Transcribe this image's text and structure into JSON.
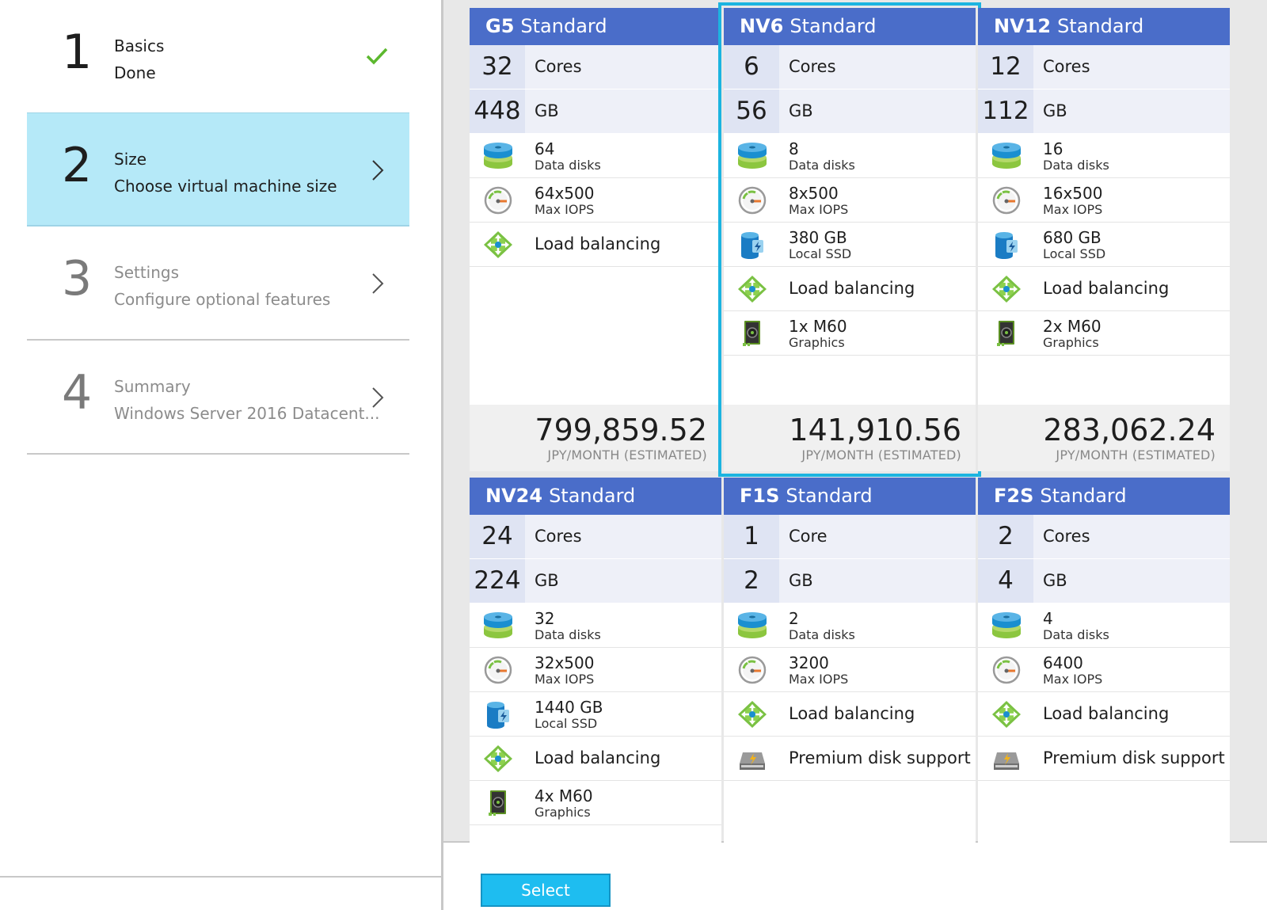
{
  "steps": [
    {
      "num": "1",
      "title": "Basics",
      "sub": "Done",
      "state": "done"
    },
    {
      "num": "2",
      "title": "Size",
      "sub": "Choose virtual machine size",
      "state": "active"
    },
    {
      "num": "3",
      "title": "Settings",
      "sub": "Configure optional features",
      "state": "pending"
    },
    {
      "num": "4",
      "title": "Summary",
      "sub": "Windows Server 2016 Datacent...",
      "state": "pending"
    }
  ],
  "price_unit": "JPY/MONTH (ESTIMATED)",
  "cards": [
    {
      "name": "G5",
      "tier": "Standard",
      "cores": "32",
      "cores_label": "Cores",
      "ram": "448",
      "ram_label": "GB",
      "features": [
        {
          "icon": "data-disks-icon",
          "value": "64",
          "label": "Data disks"
        },
        {
          "icon": "iops-gauge-icon",
          "value": "64x500",
          "label": "Max IOPS"
        },
        {
          "icon": "load-balancing-icon",
          "value": "Load balancing",
          "label": ""
        }
      ],
      "price": "799,859.52"
    },
    {
      "name": "NV6",
      "tier": "Standard",
      "cores": "6",
      "cores_label": "Cores",
      "ram": "56",
      "ram_label": "GB",
      "features": [
        {
          "icon": "data-disks-icon",
          "value": "8",
          "label": "Data disks"
        },
        {
          "icon": "iops-gauge-icon",
          "value": "8x500",
          "label": "Max IOPS"
        },
        {
          "icon": "local-ssd-icon",
          "value": "380 GB",
          "label": "Local SSD"
        },
        {
          "icon": "load-balancing-icon",
          "value": "Load balancing",
          "label": ""
        },
        {
          "icon": "graphics-card-icon",
          "value": "1x M60",
          "label": "Graphics"
        }
      ],
      "price": "141,910.56",
      "selected": true
    },
    {
      "name": "NV12",
      "tier": "Standard",
      "cores": "12",
      "cores_label": "Cores",
      "ram": "112",
      "ram_label": "GB",
      "features": [
        {
          "icon": "data-disks-icon",
          "value": "16",
          "label": "Data disks"
        },
        {
          "icon": "iops-gauge-icon",
          "value": "16x500",
          "label": "Max IOPS"
        },
        {
          "icon": "local-ssd-icon",
          "value": "680 GB",
          "label": "Local SSD"
        },
        {
          "icon": "load-balancing-icon",
          "value": "Load balancing",
          "label": ""
        },
        {
          "icon": "graphics-card-icon",
          "value": "2x M60",
          "label": "Graphics"
        }
      ],
      "price": "283,062.24"
    },
    {
      "name": "NV24",
      "tier": "Standard",
      "cores": "24",
      "cores_label": "Cores",
      "ram": "224",
      "ram_label": "GB",
      "features": [
        {
          "icon": "data-disks-icon",
          "value": "32",
          "label": "Data disks"
        },
        {
          "icon": "iops-gauge-icon",
          "value": "32x500",
          "label": "Max IOPS"
        },
        {
          "icon": "local-ssd-icon",
          "value": "1440 GB",
          "label": "Local SSD"
        },
        {
          "icon": "load-balancing-icon",
          "value": "Load balancing",
          "label": ""
        },
        {
          "icon": "graphics-card-icon",
          "value": "4x M60",
          "label": "Graphics"
        }
      ]
    },
    {
      "name": "F1S",
      "tier": "Standard",
      "cores": "1",
      "cores_label": "Core",
      "ram": "2",
      "ram_label": "GB",
      "features": [
        {
          "icon": "data-disks-icon",
          "value": "2",
          "label": "Data disks"
        },
        {
          "icon": "iops-gauge-icon",
          "value": "3200",
          "label": "Max IOPS"
        },
        {
          "icon": "load-balancing-icon",
          "value": "Load balancing",
          "label": ""
        },
        {
          "icon": "premium-disk-icon",
          "value": "Premium disk support",
          "label": ""
        }
      ]
    },
    {
      "name": "F2S",
      "tier": "Standard",
      "cores": "2",
      "cores_label": "Cores",
      "ram": "4",
      "ram_label": "GB",
      "features": [
        {
          "icon": "data-disks-icon",
          "value": "4",
          "label": "Data disks"
        },
        {
          "icon": "iops-gauge-icon",
          "value": "6400",
          "label": "Max IOPS"
        },
        {
          "icon": "load-balancing-icon",
          "value": "Load balancing",
          "label": ""
        },
        {
          "icon": "premium-disk-icon",
          "value": "Premium disk support",
          "label": ""
        }
      ]
    }
  ],
  "select_button": "Select",
  "colors": {
    "header": "#4a6dc9",
    "selected_outline": "#1cb4e0",
    "active_step": "#b5e9f8",
    "select_button": "#1ebdf0",
    "check": "#5cb82e"
  }
}
